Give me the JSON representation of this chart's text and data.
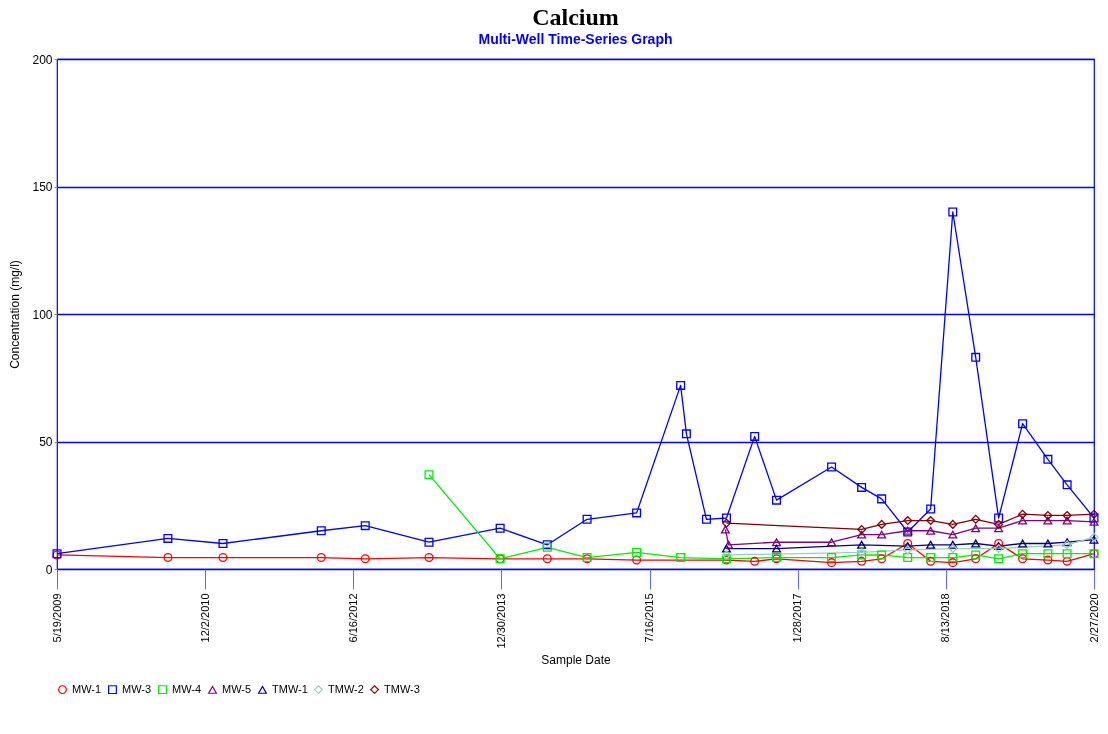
{
  "chart_data": {
    "type": "line",
    "title": "Calcium",
    "subtitle": "Multi-Well Time-Series Graph",
    "xlabel": "Sample Date",
    "ylabel": "Concentration (mg/l)",
    "xlim": [
      "2009-05-19",
      "2020-02-27"
    ],
    "xticks": [
      {
        "value": "2009-05-19",
        "label": "5/19/2009"
      },
      {
        "value": "2010-12-02",
        "label": "12/2/2010"
      },
      {
        "value": "2012-06-16",
        "label": "6/16/2012"
      },
      {
        "value": "2013-12-30",
        "label": "12/30/2013"
      },
      {
        "value": "2015-07-16",
        "label": "7/16/2015"
      },
      {
        "value": "2017-01-28",
        "label": "1/28/2017"
      },
      {
        "value": "2018-08-13",
        "label": "8/13/2018"
      },
      {
        "value": "2020-02-27",
        "label": "2/27/2020"
      }
    ],
    "ylim": [
      0,
      200
    ],
    "yticks": [
      0,
      50,
      100,
      150,
      200
    ],
    "grid": "y",
    "legend": "bottom",
    "series": [
      {
        "name": "MW-1",
        "color": "#ff0000",
        "marker": "circle",
        "x": [
          "2009-05-19",
          "2010-07-14",
          "2011-02-08",
          "2012-02-16",
          "2012-08-01",
          "2013-03-31",
          "2013-12-26",
          "2014-06-23",
          "2014-11-21",
          "2015-05-28",
          "2016-05-03",
          "2016-08-18",
          "2016-11-09",
          "2017-06-06",
          "2017-09-28",
          "2017-12-13",
          "2018-03-22",
          "2018-06-17",
          "2018-09-09",
          "2018-12-05",
          "2019-03-02",
          "2019-06-01",
          "2019-09-05",
          "2019-11-17",
          "2020-02-27"
        ],
        "values": [
          5.5,
          4.5,
          4.5,
          4.5,
          4,
          4.5,
          4,
          4,
          4,
          3.5,
          3.5,
          3,
          4,
          2.5,
          3,
          4,
          10,
          3,
          2.5,
          4,
          10,
          4,
          3.5,
          3,
          6
        ]
      },
      {
        "name": "MW-3",
        "color": "#0000ff",
        "marker": "square",
        "x": [
          "2009-05-19",
          "2010-07-14",
          "2011-02-08",
          "2012-02-16",
          "2012-08-01",
          "2013-03-31",
          "2013-12-26",
          "2014-06-23",
          "2014-11-21",
          "2015-05-28",
          "2015-11-11",
          "2015-12-03",
          "2016-02-17",
          "2016-05-03",
          "2016-08-18",
          "2016-11-09",
          "2017-06-06",
          "2017-09-28",
          "2017-12-13",
          "2018-03-22",
          "2018-06-17",
          "2018-09-09",
          "2018-12-05",
          "2019-03-02",
          "2019-06-01",
          "2019-09-05",
          "2019-11-17",
          "2020-02-27"
        ],
        "values": [
          6,
          12,
          10,
          15,
          17,
          10.5,
          16,
          9.5,
          19.5,
          22,
          72,
          53,
          19.5,
          20,
          52,
          27,
          40,
          32,
          27.5,
          14.5,
          23.5,
          140,
          83,
          20,
          57,
          43,
          33,
          20
        ]
      },
      {
        "name": "MW-4",
        "color": "#00ee00",
        "marker": "square",
        "x": [
          "2013-03-31",
          "2013-12-26",
          "2014-06-23",
          "2014-11-21",
          "2015-05-28",
          "2015-11-11",
          "2016-05-03",
          "2016-11-09",
          "2017-06-06",
          "2017-09-28",
          "2017-12-13",
          "2018-03-22",
          "2018-06-17",
          "2018-09-09",
          "2018-12-05",
          "2019-03-02",
          "2019-06-01",
          "2019-09-05",
          "2019-11-17",
          "2020-02-27"
        ],
        "values": [
          37,
          4,
          8.5,
          4.5,
          6.5,
          4.5,
          4,
          4.5,
          4.5,
          5.5,
          5.5,
          4.5,
          4.5,
          4.5,
          5.5,
          4,
          6,
          6,
          6,
          6
        ]
      },
      {
        "name": "MW-5",
        "color": "#800080",
        "marker": "triangle",
        "x": [
          "2016-04-29",
          "2016-05-11",
          "2016-11-09",
          "2017-06-06",
          "2017-09-28",
          "2017-12-13",
          "2018-03-22",
          "2018-06-17",
          "2018-09-09",
          "2018-12-05",
          "2019-03-02",
          "2019-06-01",
          "2019-09-05",
          "2019-11-17",
          "2020-02-27"
        ],
        "values": [
          15.5,
          9.5,
          10.5,
          10.5,
          13.5,
          13.5,
          15,
          15,
          13.5,
          16,
          16,
          19,
          19,
          19,
          18.5
        ]
      },
      {
        "name": "TMW-1",
        "color": "#000080",
        "marker": "triangle",
        "x": [
          "2016-05-03",
          "2016-11-09",
          "2017-09-28",
          "2018-03-22",
          "2018-06-17",
          "2018-09-09",
          "2018-12-05",
          "2019-03-02",
          "2019-06-01",
          "2019-09-05",
          "2019-11-17",
          "2020-02-27"
        ],
        "values": [
          8,
          8,
          9.5,
          9,
          9.5,
          9.5,
          10,
          9,
          10,
          10,
          10.5,
          11.5
        ]
      },
      {
        "name": "TMW-2",
        "color": "#99cccc",
        "marker": "diamond",
        "x": [
          "2016-05-03",
          "2017-09-28",
          "2018-03-22",
          "2018-09-09",
          "2019-03-02",
          "2019-11-17",
          "2020-02-27"
        ],
        "values": [
          5.5,
          6.5,
          7.5,
          8,
          8,
          9.5,
          12.5
        ]
      },
      {
        "name": "TMW-3",
        "color": "#800000",
        "marker": "diamond",
        "x": [
          "2016-05-03",
          "2017-09-28",
          "2017-12-13",
          "2018-03-22",
          "2018-06-17",
          "2018-09-09",
          "2018-12-05",
          "2019-03-02",
          "2019-06-01",
          "2019-09-05",
          "2019-11-17",
          "2020-02-27"
        ],
        "values": [
          18,
          15.5,
          17.5,
          19,
          19,
          17.5,
          19.5,
          17.5,
          21.5,
          21,
          21,
          21.5
        ]
      }
    ]
  }
}
